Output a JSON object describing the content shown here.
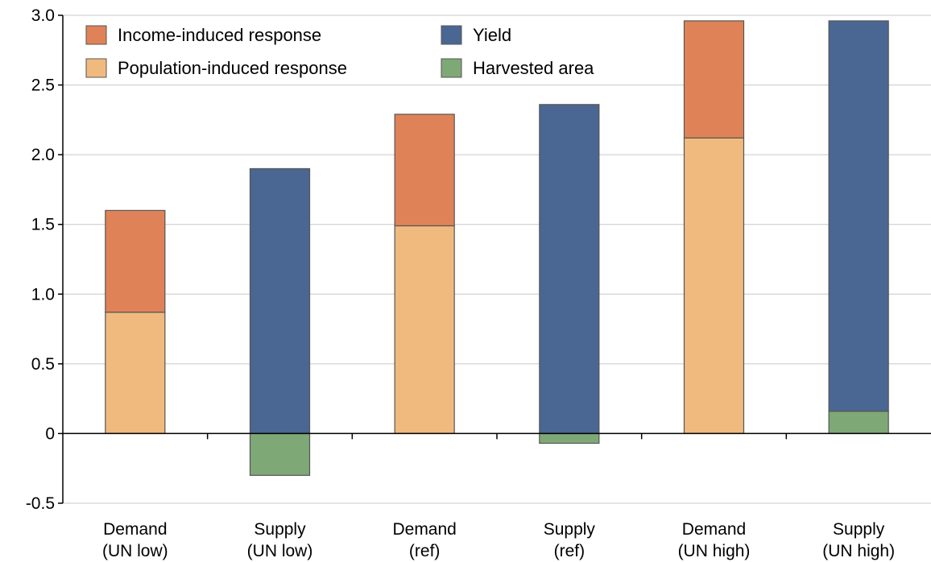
{
  "chart_data": {
    "type": "bar",
    "stacked": true,
    "categories": [
      [
        "Demand",
        "(UN low)"
      ],
      [
        "Supply",
        "(UN low)"
      ],
      [
        "Demand",
        "(ref)"
      ],
      [
        "Supply",
        "(ref)"
      ],
      [
        "Demand",
        "(UN high)"
      ],
      [
        "Supply",
        "(UN high)"
      ]
    ],
    "series": [
      {
        "name": "Population-induced response",
        "color": "#F0BA7E",
        "values": [
          0.87,
          0,
          1.49,
          0,
          2.12,
          0
        ]
      },
      {
        "name": "Income-induced response",
        "color": "#E08257",
        "values": [
          0.73,
          0,
          0.8,
          0,
          0.84,
          0
        ]
      },
      {
        "name": "Harvested area",
        "color": "#7FA877",
        "values": [
          0,
          -0.3,
          0,
          -0.07,
          0,
          0.16
        ]
      },
      {
        "name": "Yield",
        "color": "#4A6793",
        "values": [
          0,
          1.9,
          0,
          2.36,
          0,
          2.8
        ]
      }
    ],
    "legend": {
      "placement": "top",
      "order": [
        "Income-induced response",
        "Yield",
        "Population-induced response",
        "Harvested area"
      ]
    },
    "ylim": [
      -0.5,
      3.0
    ],
    "yticks": [
      -0.5,
      0,
      0.5,
      1.0,
      1.5,
      2.0,
      2.5,
      3.0
    ],
    "ytick_labels": [
      "-0.5",
      "0",
      "0.5",
      "1.0",
      "1.5",
      "2.0",
      "2.5",
      "3.0"
    ],
    "grid": true,
    "title": "",
    "xlabel": "",
    "ylabel": ""
  }
}
